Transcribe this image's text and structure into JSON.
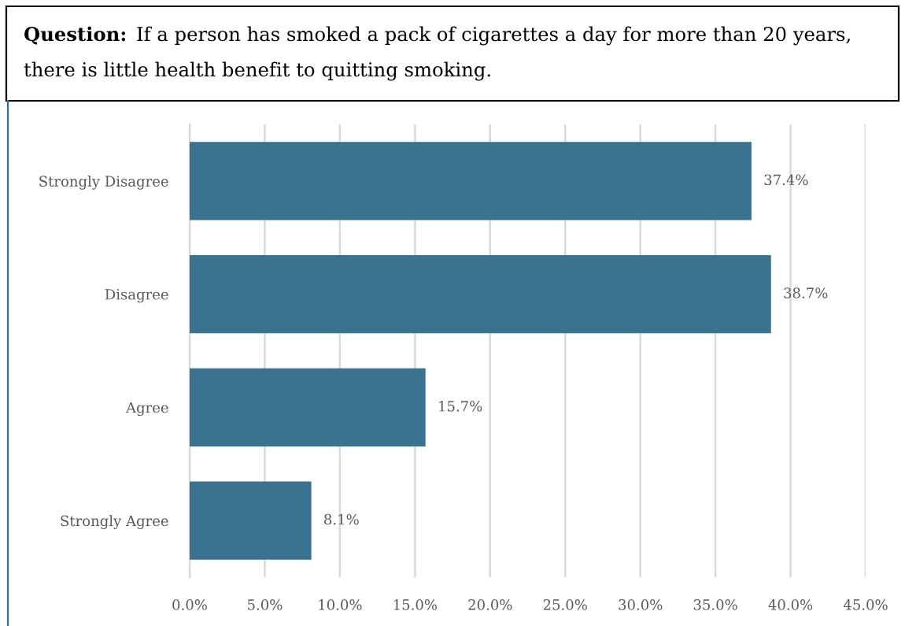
{
  "chart_data": {
    "type": "bar",
    "orientation": "horizontal",
    "title": "Question: If a person has smoked a pack of cigarettes a day for more than 20 years, there is little health benefit to quitting smoking.",
    "categories": [
      "Strongly Disagree",
      "Disagree",
      "Agree",
      "Strongly Agree"
    ],
    "values": [
      37.4,
      38.7,
      15.7,
      8.1
    ],
    "value_labels": [
      "37.4%",
      "38.7%",
      "15.7%",
      "8.1%"
    ],
    "color": "#3a7290",
    "xlim": [
      0,
      45
    ],
    "xticks": [
      {
        "value": 0,
        "label": "0.0%"
      },
      {
        "value": 5,
        "label": "5.0%"
      },
      {
        "value": 10,
        "label": "10.0%"
      },
      {
        "value": 15,
        "label": "15.0%"
      },
      {
        "value": 20,
        "label": "20.0%"
      },
      {
        "value": 25,
        "label": "25.0%"
      },
      {
        "value": 30,
        "label": "30.0%"
      },
      {
        "value": 35,
        "label": "35.0%"
      },
      {
        "value": 40,
        "label": "40.0%"
      },
      {
        "value": 45,
        "label": "45.0%"
      }
    ],
    "grid": "x",
    "legend": false
  }
}
